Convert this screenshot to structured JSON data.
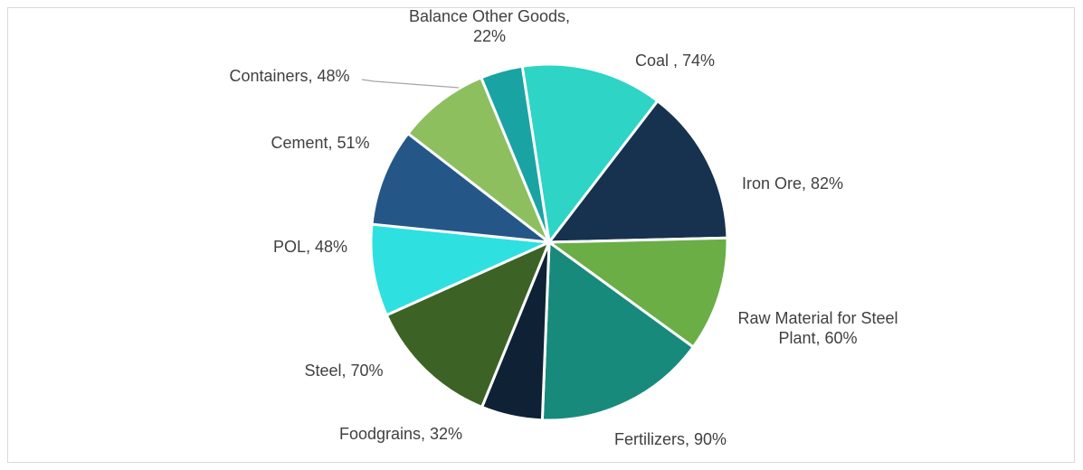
{
  "chart_data": {
    "type": "pie",
    "title": "",
    "slices": [
      {
        "label_lines": [
          "Coal , 74%"
        ],
        "category": "Coal",
        "value": 74,
        "color": "#2ed4c6"
      },
      {
        "label_lines": [
          "Iron Ore, 82%"
        ],
        "category": "Iron Ore",
        "value": 82,
        "color": "#16324f"
      },
      {
        "label_lines": [
          "Raw Material for Steel",
          "Plant, 60%"
        ],
        "category": "Raw Material for Steel Plant",
        "value": 60,
        "color": "#6aae45"
      },
      {
        "label_lines": [
          "Fertilizers, 90%"
        ],
        "category": "Fertilizers",
        "value": 90,
        "color": "#178a7c"
      },
      {
        "label_lines": [
          "Foodgrains, 32%"
        ],
        "category": "Foodgrains",
        "value": 32,
        "color": "#0f2134"
      },
      {
        "label_lines": [
          "Steel, 70%"
        ],
        "category": "Steel",
        "value": 70,
        "color": "#3c6325"
      },
      {
        "label_lines": [
          "POL, 48%"
        ],
        "category": "POL",
        "value": 48,
        "color": "#2fe0e0"
      },
      {
        "label_lines": [
          "Cement, 51%"
        ],
        "category": "Cement",
        "value": 51,
        "color": "#245788"
      },
      {
        "label_lines": [
          "Containers, 48%"
        ],
        "category": "Containers",
        "value": 48,
        "color": "#8dbf5e"
      },
      {
        "label_lines": [
          "Balance Other Goods,",
          "22%"
        ],
        "category": "Balance Other Goods",
        "value": 22,
        "color": "#1aa3a3"
      }
    ],
    "leader_line_color": "#a6a6a6"
  }
}
